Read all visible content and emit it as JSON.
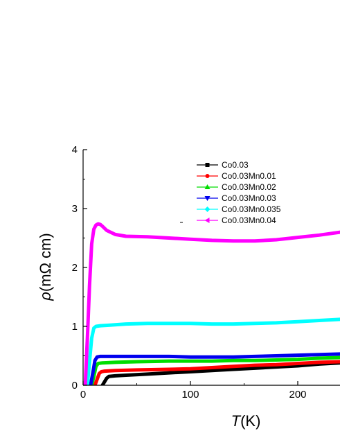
{
  "chart_data": {
    "type": "line",
    "title": "",
    "xlabel_italic": "T",
    "xlabel_rest": "(K)",
    "ylabel_italic": "ρ",
    "ylabel_rest": "(mΩ cm)",
    "xlim": [
      0,
      240
    ],
    "ylim": [
      0,
      4
    ],
    "xticks": [
      0,
      100,
      200
    ],
    "yticks": [
      0,
      1,
      2,
      3,
      4
    ],
    "grid": false,
    "legend_position": "top-right",
    "series": [
      {
        "name": "Co0.03",
        "color": "#000000",
        "marker": "square",
        "x": [
          18,
          20,
          22,
          24,
          30,
          40,
          60,
          80,
          100,
          120,
          140,
          160,
          180,
          200,
          220,
          240
        ],
        "y": [
          0.0,
          0.06,
          0.12,
          0.15,
          0.16,
          0.17,
          0.19,
          0.21,
          0.23,
          0.25,
          0.27,
          0.29,
          0.31,
          0.33,
          0.36,
          0.38
        ]
      },
      {
        "name": "Co0.03Mn0.01",
        "color": "#ff0000",
        "marker": "circle",
        "x": [
          11,
          13,
          15,
          17,
          20,
          30,
          50,
          80,
          100,
          120,
          140,
          160,
          180,
          200,
          220,
          240
        ],
        "y": [
          0.0,
          0.1,
          0.2,
          0.23,
          0.24,
          0.25,
          0.26,
          0.27,
          0.28,
          0.3,
          0.32,
          0.34,
          0.35,
          0.37,
          0.39,
          0.4
        ]
      },
      {
        "name": "Co0.03Mn0.02",
        "color": "#00dd00",
        "marker": "triangle-up",
        "x": [
          8,
          10,
          12,
          14,
          18,
          30,
          50,
          80,
          100,
          120,
          140,
          160,
          180,
          200,
          220,
          240
        ],
        "y": [
          0.0,
          0.15,
          0.32,
          0.37,
          0.38,
          0.39,
          0.4,
          0.41,
          0.41,
          0.41,
          0.42,
          0.42,
          0.43,
          0.44,
          0.46,
          0.47
        ]
      },
      {
        "name": "Co0.03Mn0.03",
        "color": "#0000ee",
        "marker": "triangle-down",
        "x": [
          7,
          9,
          11,
          13,
          16,
          30,
          50,
          80,
          100,
          120,
          140,
          160,
          180,
          200,
          220,
          240
        ],
        "y": [
          0.0,
          0.2,
          0.42,
          0.48,
          0.49,
          0.49,
          0.49,
          0.49,
          0.48,
          0.48,
          0.48,
          0.49,
          0.5,
          0.51,
          0.52,
          0.53
        ]
      },
      {
        "name": "Co0.03Mn0.035",
        "color": "#00ffff",
        "marker": "diamond",
        "x": [
          4,
          6,
          8,
          10,
          12,
          16,
          25,
          40,
          60,
          80,
          100,
          120,
          140,
          160,
          180,
          200,
          220,
          240
        ],
        "y": [
          0.0,
          0.4,
          0.8,
          0.97,
          1.0,
          1.01,
          1.02,
          1.04,
          1.05,
          1.05,
          1.05,
          1.04,
          1.04,
          1.05,
          1.06,
          1.08,
          1.1,
          1.12
        ]
      },
      {
        "name": "Co0.03Mn0.04",
        "color": "#ff00ff",
        "marker": "triangle-left",
        "x": [
          2,
          4,
          6,
          8,
          10,
          12,
          14,
          16,
          18,
          22,
          30,
          40,
          60,
          80,
          100,
          120,
          140,
          160,
          180,
          200,
          220,
          240
        ],
        "y": [
          0.0,
          0.8,
          1.7,
          2.4,
          2.65,
          2.72,
          2.74,
          2.73,
          2.7,
          2.63,
          2.56,
          2.53,
          2.52,
          2.5,
          2.48,
          2.46,
          2.45,
          2.45,
          2.47,
          2.51,
          2.55,
          2.6
        ]
      }
    ]
  }
}
